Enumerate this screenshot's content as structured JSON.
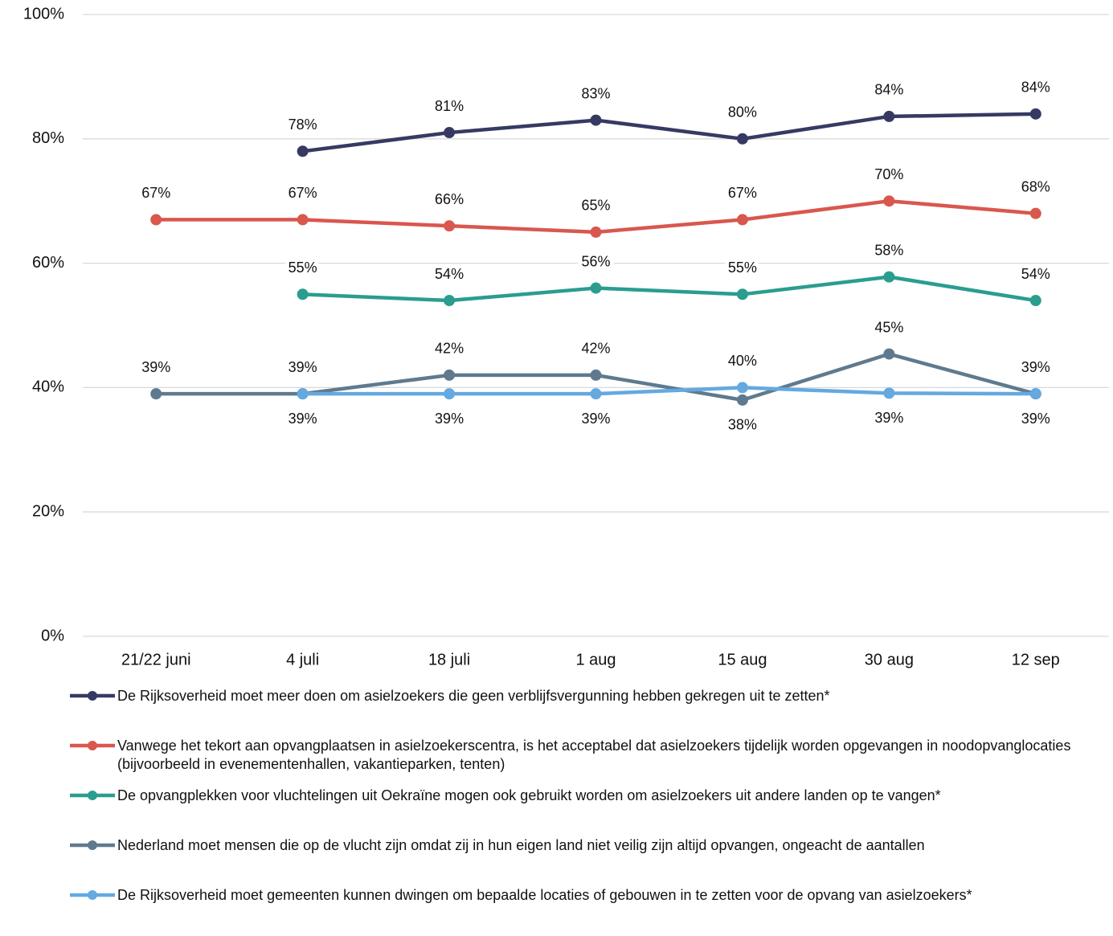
{
  "chart_data": {
    "type": "line",
    "categories": [
      "21/22 juni",
      "4 juli",
      "18 juli",
      "1 aug",
      "15 aug",
      "30 aug",
      "12 sep"
    ],
    "ylim": [
      0,
      100
    ],
    "yticks": [
      {
        "value": 0,
        "label": "0%"
      },
      {
        "value": 20,
        "label": "20%"
      },
      {
        "value": 40,
        "label": "40%"
      },
      {
        "value": 60,
        "label": "60%"
      },
      {
        "value": 80,
        "label": "80%"
      },
      {
        "value": 100,
        "label": "100%"
      }
    ],
    "grid": true,
    "legend": "bottom",
    "series": [
      {
        "name": "De Rijksoverheid moet meer doen om asielzoekers die geen verblijfsvergunning hebben gekregen uit te zetten*",
        "color": "#363a63",
        "values": [
          null,
          78,
          81,
          83,
          80,
          83.6,
          84
        ],
        "value_labels": [
          null,
          "78%",
          "81%",
          "83%",
          "80%",
          "84%",
          "84%"
        ]
      },
      {
        "name": "Vanwege het tekort aan opvangplaatsen in asielzoekerscentra, is het acceptabel dat asielzoekers tijdelijk worden opgevangen in noodopvanglocaties (bijvoorbeeld in evenementenhallen, vakantieparken, tenten)",
        "color": "#d9574e",
        "values": [
          67,
          67,
          66,
          65,
          67,
          70,
          68
        ],
        "value_labels": [
          "67%",
          "67%",
          "66%",
          "65%",
          "67%",
          "70%",
          "68%"
        ]
      },
      {
        "name": "De opvangplekken voor vluchtelingen uit Oekraïne mogen ook gebruikt worden om asielzoekers uit andere landen op te vangen*",
        "color": "#2a9d8f",
        "values": [
          null,
          55,
          54,
          56,
          55,
          57.8,
          54
        ],
        "value_labels": [
          null,
          "55%",
          "54%",
          "56%",
          "55%",
          "58%",
          "54%"
        ]
      },
      {
        "name": "Nederland moet mensen die op de vlucht zijn omdat zij in hun eigen land niet veilig zijn altijd opvangen, ongeacht de aantallen",
        "color": "#5f7a8e",
        "values": [
          39,
          39,
          42,
          42,
          38,
          45.4,
          39
        ],
        "value_labels": [
          "39%",
          "39%",
          "42%",
          "42%",
          "38%",
          "45%",
          "39%"
        ]
      },
      {
        "name": "De Rijksoverheid moet gemeenten kunnen dwingen om bepaalde locaties of gebouwen in te zetten voor de opvang van asielzoekers*",
        "color": "#64a9e0",
        "values": [
          null,
          39,
          39,
          39,
          40,
          39.1,
          39
        ],
        "value_labels": [
          null,
          "39%",
          "39%",
          "39%",
          "40%",
          "39%",
          "39%"
        ]
      }
    ]
  }
}
